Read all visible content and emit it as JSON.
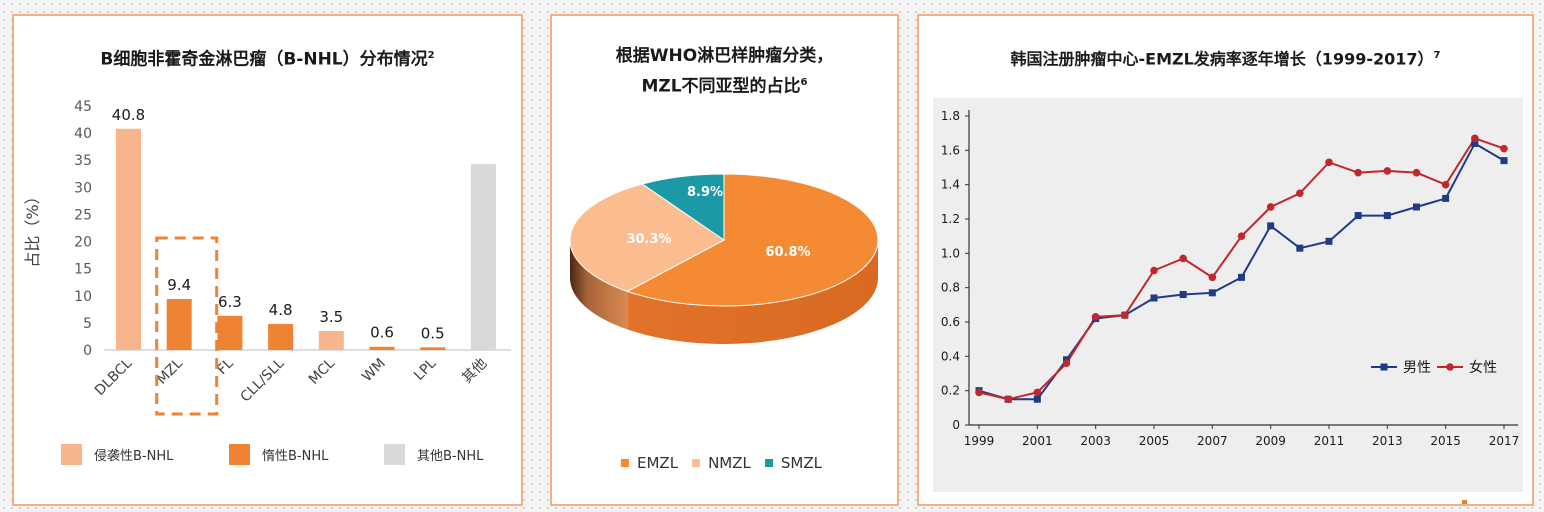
{
  "colors": {
    "aggressive": "#f7b58c",
    "indolent": "#ee8433",
    "other": "#d9d9d9",
    "emzl": "#f58a35",
    "nmzl": "#fbbd8f",
    "smzl": "#1b9aa5",
    "male": "#1f3b85",
    "female": "#c1272d",
    "border": "#f4b084"
  },
  "panel1": {
    "title_main": "B细胞非霍奇金淋巴瘤（B-NHL）分布情况",
    "title_sup": "2"
  },
  "panel2": {
    "title_line1": "根据WHO淋巴样肿瘤分类，",
    "title_line2": "MZL不同亚型的占比",
    "title_sup": "6"
  },
  "panel3": {
    "title_main": "韩国注册肿瘤中心-EMZL发病率逐年增长（1999-2017）",
    "title_sup": "7"
  },
  "chart_data": [
    {
      "type": "bar",
      "title": "B细胞非霍奇金淋巴瘤（B-NHL）分布情况",
      "ylabel": "占比（%）",
      "xlabel": "",
      "ylim": [
        0,
        45
      ],
      "yticks": [
        "0",
        "5",
        "10",
        "15",
        "20",
        "25",
        "30",
        "35",
        "40",
        "45"
      ],
      "categories": [
        "DLBCL",
        "MZL",
        "FL",
        "CLL/SLL",
        "MCL",
        "WM",
        "LPL",
        "其他"
      ],
      "values": [
        40.8,
        9.4,
        6.3,
        4.8,
        3.5,
        0.6,
        0.5,
        34.3
      ],
      "value_labels": [
        "40.8",
        "9.4",
        "6.3",
        "4.8",
        "3.5",
        "0.6",
        "0.5",
        null
      ],
      "groups": [
        "aggressive",
        "indolent",
        "indolent",
        "indolent",
        "aggressive",
        "indolent",
        "indolent",
        "other"
      ],
      "highlight_category": "MZL",
      "legend": [
        {
          "key": "aggressive",
          "label": "侵袭性B-NHL"
        },
        {
          "key": "indolent",
          "label": "惰性B-NHL"
        },
        {
          "key": "other",
          "label": "其他B-NHL"
        }
      ]
    },
    {
      "type": "pie",
      "title": "根据WHO淋巴样肿瘤分类，MZL不同亚型的占比",
      "slices": [
        {
          "key": "emzl",
          "label": "EMZL",
          "value": 60.8,
          "text": "60.8%"
        },
        {
          "key": "nmzl",
          "label": "NMZL",
          "value": 30.3,
          "text": "30.3%"
        },
        {
          "key": "smzl",
          "label": "SMZL",
          "value": 8.9,
          "text": "8.9%"
        }
      ],
      "legend": [
        "EMZL",
        "NMZL",
        "SMZL"
      ]
    },
    {
      "type": "line",
      "title": "韩国注册肿瘤中心-EMZL发病率逐年增长（1999-2017）",
      "x": [
        1999,
        2000,
        2001,
        2002,
        2003,
        2004,
        2005,
        2006,
        2007,
        2008,
        2009,
        2010,
        2011,
        2012,
        2013,
        2014,
        2015,
        2016,
        2017
      ],
      "xticks": [
        "1999",
        "2001",
        "2003",
        "2005",
        "2007",
        "2009",
        "2011",
        "2013",
        "2015",
        "2017"
      ],
      "ylim": [
        0,
        1.8
      ],
      "yticks": [
        "0",
        "0.2",
        "0.4",
        "0.6",
        "0.8",
        "1.0",
        "1.2",
        "1.4",
        "1.6",
        "1.8"
      ],
      "series": [
        {
          "key": "male",
          "name": "男性",
          "marker": "square",
          "values": [
            0.2,
            0.15,
            0.15,
            0.38,
            0.62,
            0.64,
            0.74,
            0.76,
            0.77,
            0.86,
            1.16,
            1.03,
            1.07,
            1.22,
            1.22,
            1.27,
            1.32,
            1.64,
            1.54
          ]
        },
        {
          "key": "female",
          "name": "女性",
          "marker": "circle",
          "values": [
            0.19,
            0.15,
            0.19,
            0.36,
            0.63,
            0.64,
            0.9,
            0.97,
            0.86,
            1.1,
            1.27,
            1.35,
            1.53,
            1.47,
            1.48,
            1.47,
            1.4,
            1.67,
            1.61
          ]
        }
      ]
    }
  ]
}
